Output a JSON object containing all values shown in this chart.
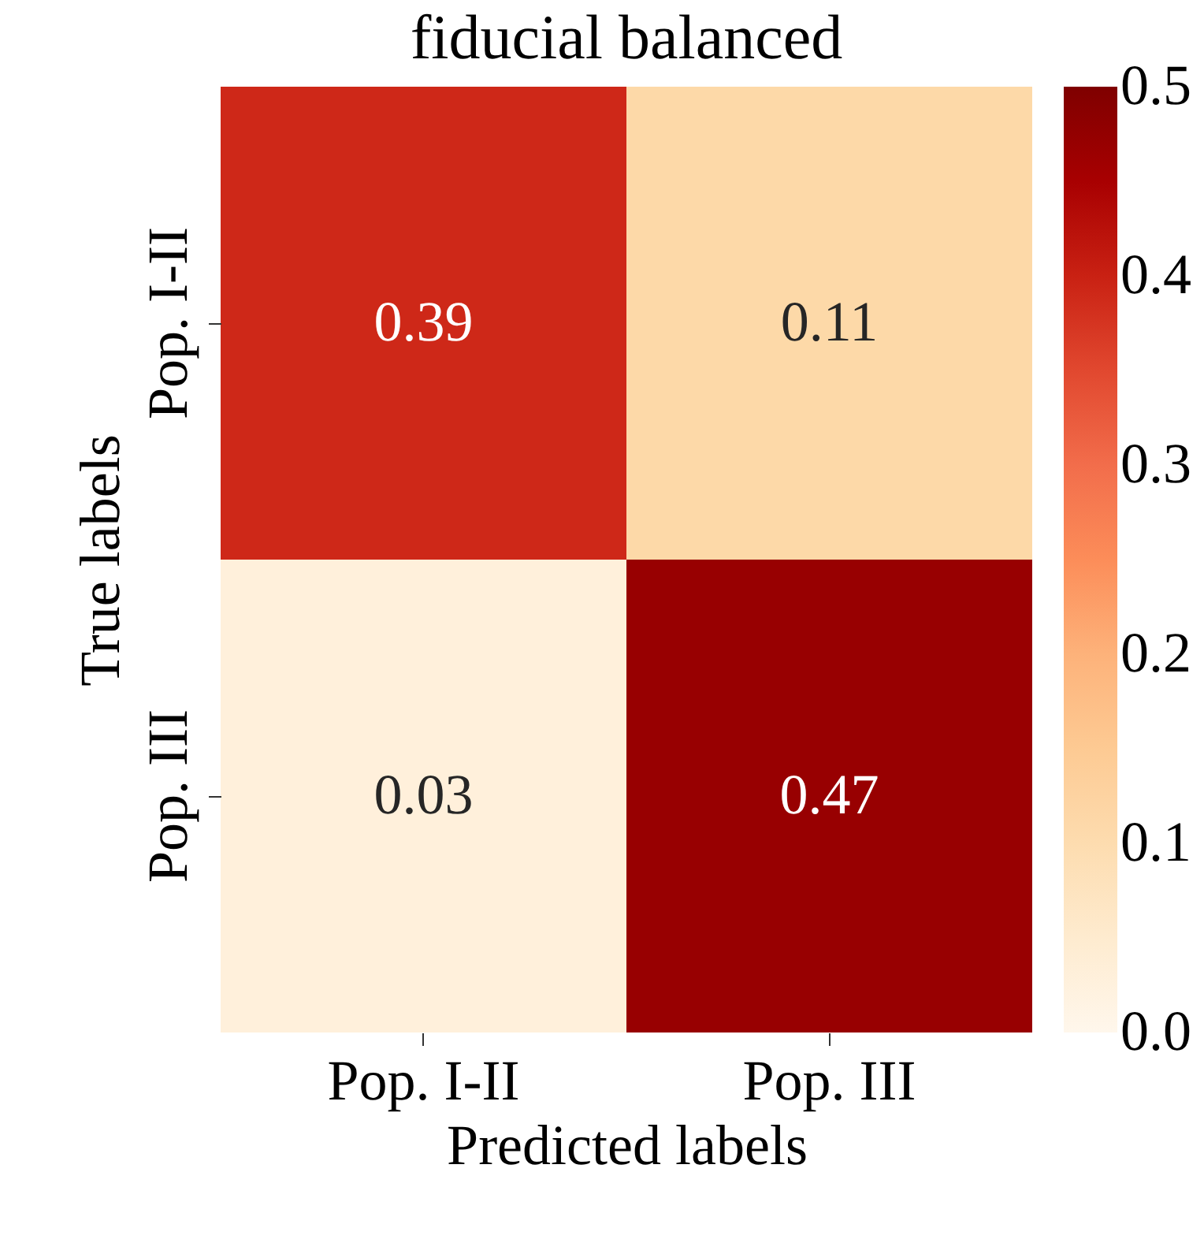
{
  "chart_data": {
    "type": "heatmap",
    "title": "fiducial balanced",
    "xlabel": "Predicted labels",
    "ylabel": "True labels",
    "categories": [
      "Pop. I-II",
      "Pop. III"
    ],
    "y_categories": [
      "Pop. I-II",
      "Pop. III"
    ],
    "cells": [
      [
        0.39,
        0.11
      ],
      [
        0.03,
        0.47
      ]
    ],
    "clim": [
      0,
      0.5
    ],
    "cticks": [
      {
        "value": 0,
        "label": "0.0"
      },
      0.1,
      0.2,
      0.3,
      0.4,
      0.5
    ],
    "data_labels": true
  }
}
